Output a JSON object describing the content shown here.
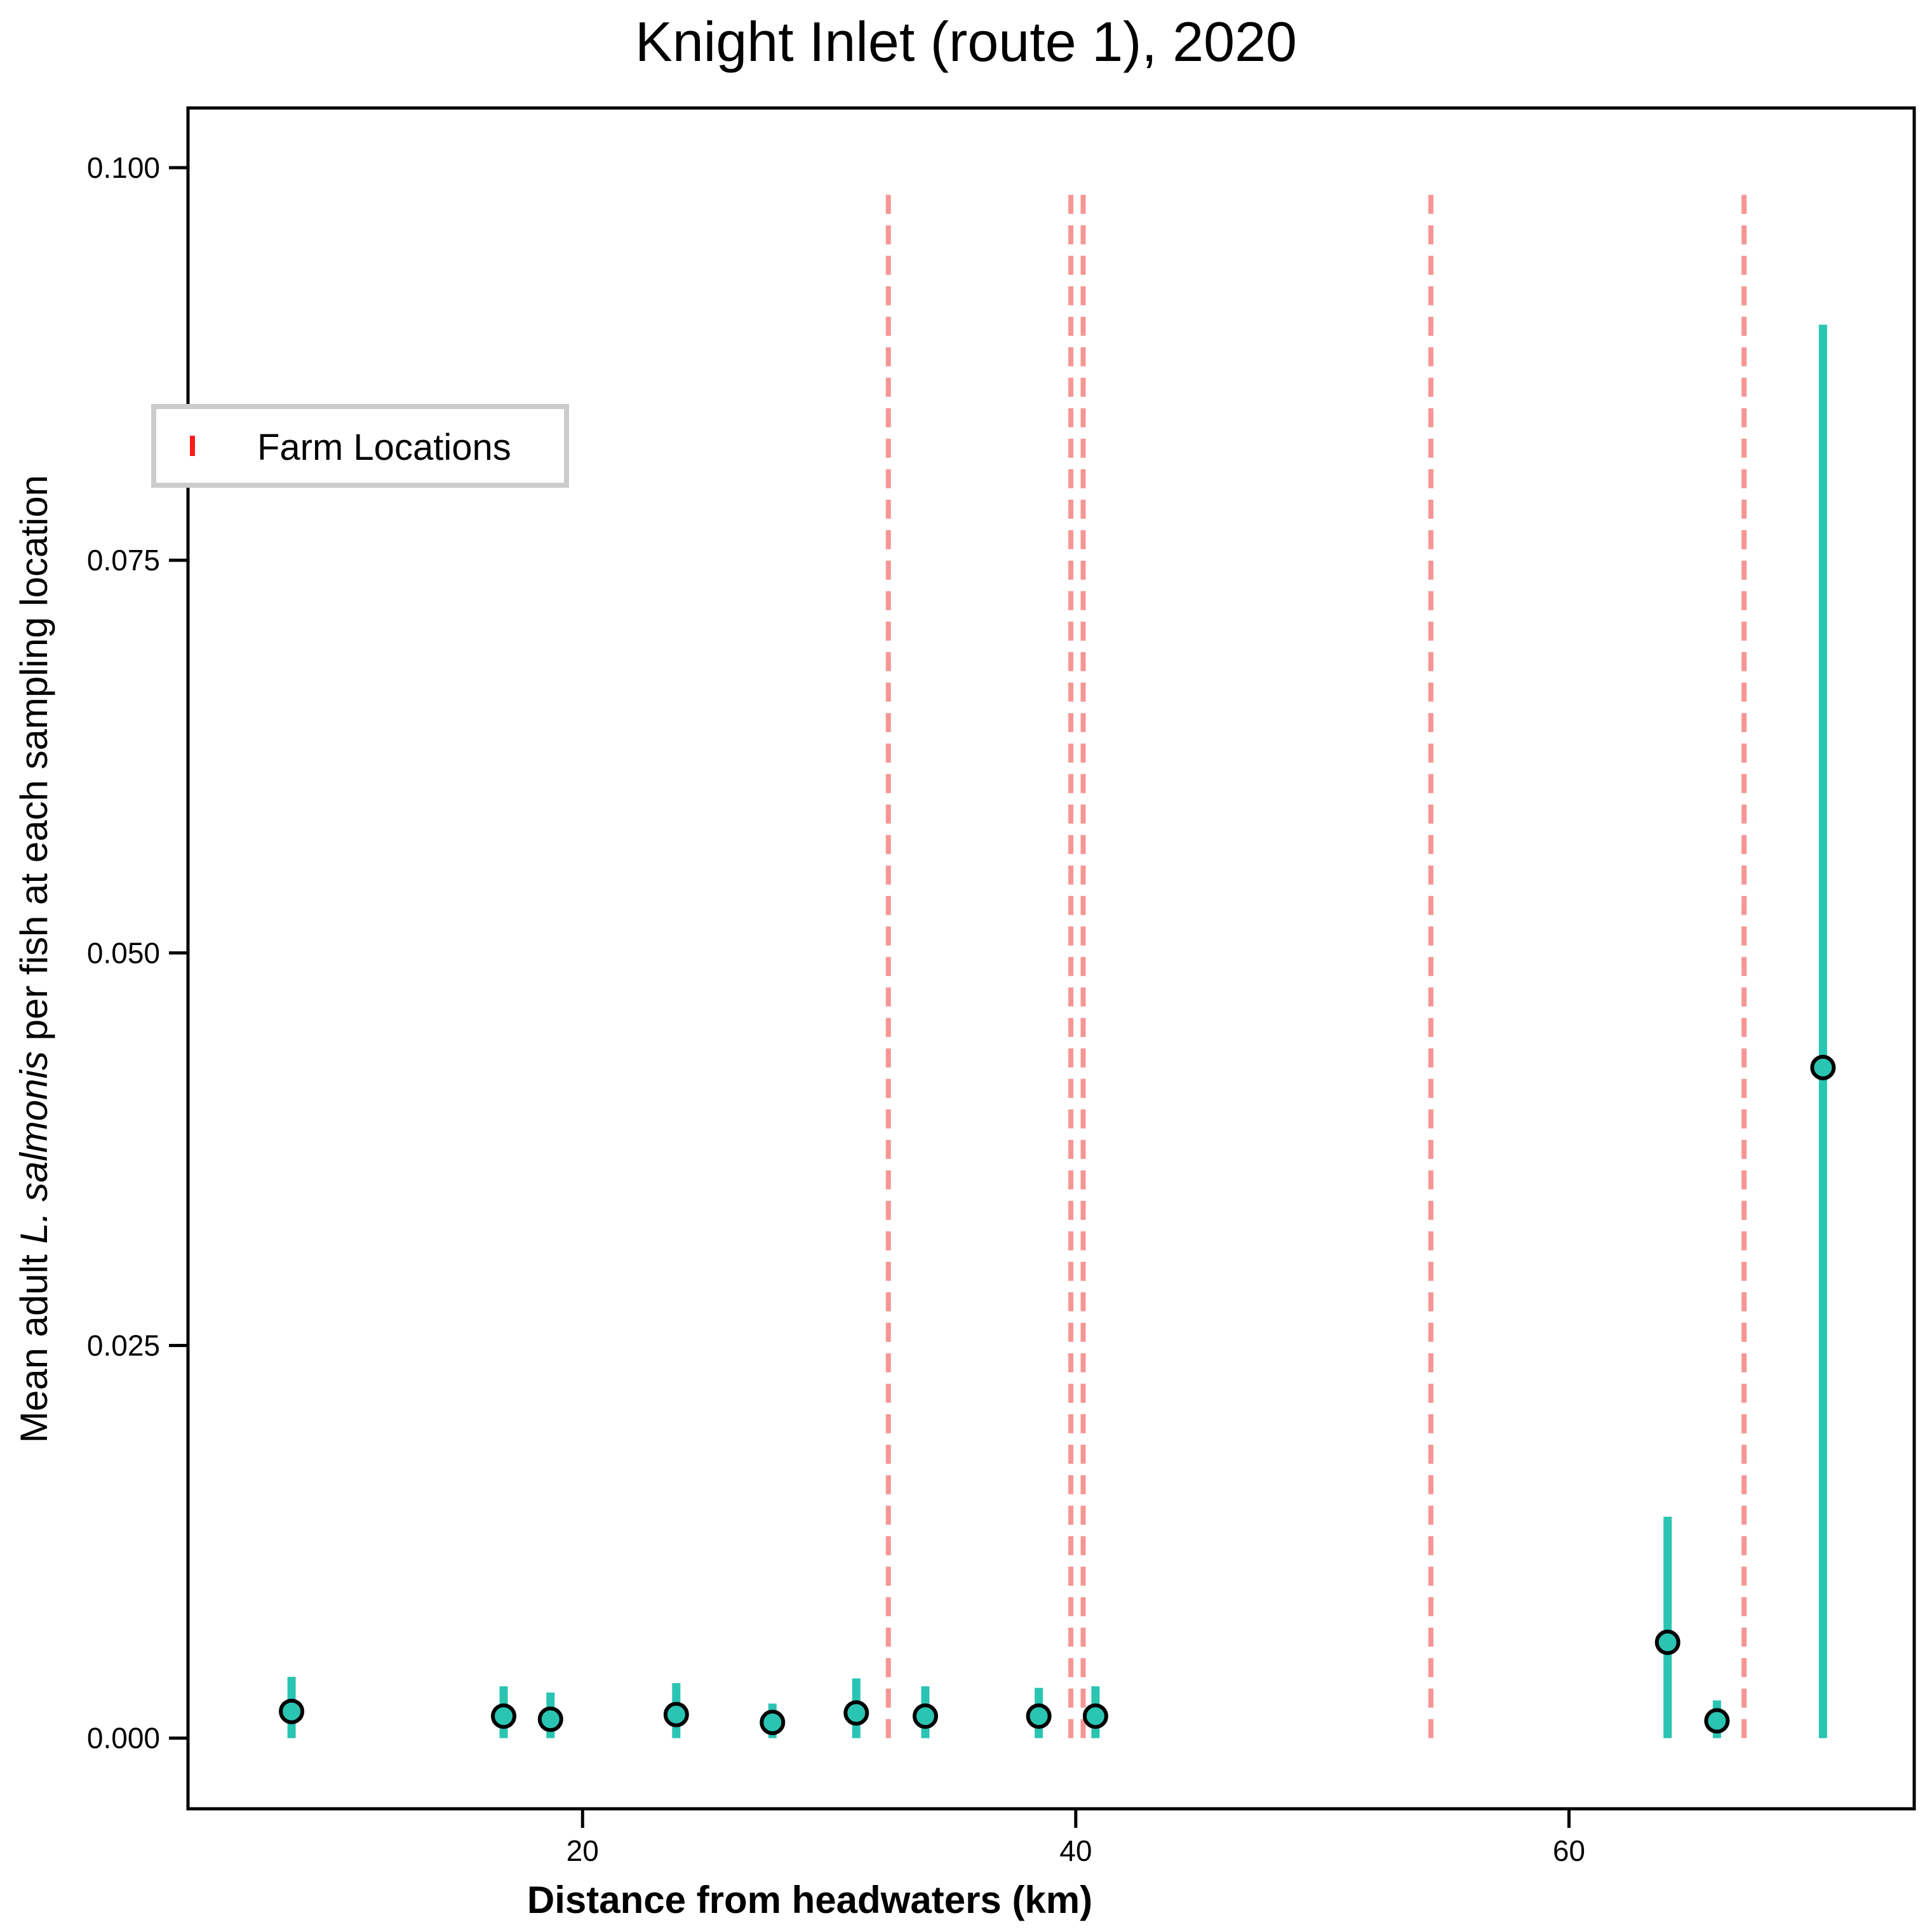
{
  "chart_data": {
    "type": "scatter",
    "title": "Knight Inlet (route 1), 2020",
    "xlabel": "Distance from headwaters (km)",
    "ylabel_parts": [
      "Mean adult ",
      "L. salmonis",
      "  per fish at each sampling location"
    ],
    "xlim": [
      4,
      74
    ],
    "ylim": [
      -0.0045,
      0.1038
    ],
    "x_ticks": [
      20,
      40,
      60
    ],
    "x_tick_labels": [
      "20",
      "40",
      "60"
    ],
    "y_ticks": [
      0.0,
      0.025,
      0.05,
      0.075,
      0.1
    ],
    "y_tick_labels": [
      "0.000",
      "0.025",
      "0.050",
      "0.075",
      "0.100"
    ],
    "grid": false,
    "legend": {
      "position": "upper-left",
      "entries": [
        "Farm Locations"
      ]
    },
    "series": [
      {
        "kind": "points-with-error",
        "color": "#2ac4b3",
        "points": [
          {
            "x": 8.2,
            "y": 0.0017,
            "err_low": 0.0,
            "err_high": 0.0039
          },
          {
            "x": 16.8,
            "y": 0.0014,
            "err_low": 0.0,
            "err_high": 0.0033
          },
          {
            "x": 18.7,
            "y": 0.0012,
            "err_low": 0.0,
            "err_high": 0.0029
          },
          {
            "x": 23.8,
            "y": 0.0015,
            "err_low": 0.0,
            "err_high": 0.0035
          },
          {
            "x": 27.7,
            "y": 0.001,
            "err_low": 0.0,
            "err_high": 0.0022
          },
          {
            "x": 31.1,
            "y": 0.0016,
            "err_low": 0.0,
            "err_high": 0.0038
          },
          {
            "x": 33.9,
            "y": 0.0014,
            "err_low": 0.0,
            "err_high": 0.0033
          },
          {
            "x": 38.5,
            "y": 0.0014,
            "err_low": 0.0,
            "err_high": 0.0032
          },
          {
            "x": 40.8,
            "y": 0.0014,
            "err_low": 0.0,
            "err_high": 0.0033
          },
          {
            "x": 64.0,
            "y": 0.0061,
            "err_low": 0.0,
            "err_high": 0.0141
          },
          {
            "x": 66.0,
            "y": 0.0011,
            "err_low": 0.0,
            "err_high": 0.0024
          },
          {
            "x": 70.3,
            "y": 0.0427,
            "err_low": 0.0,
            "err_high": 0.09
          }
        ]
      },
      {
        "kind": "vertical-lines",
        "name": "Farm Locations",
        "color": "#f79595",
        "legend_color": "#ff1a1a",
        "x": [
          32.4,
          39.8,
          40.3,
          54.4,
          67.1
        ],
        "y_range": [
          0.0,
          0.099
        ]
      }
    ]
  }
}
